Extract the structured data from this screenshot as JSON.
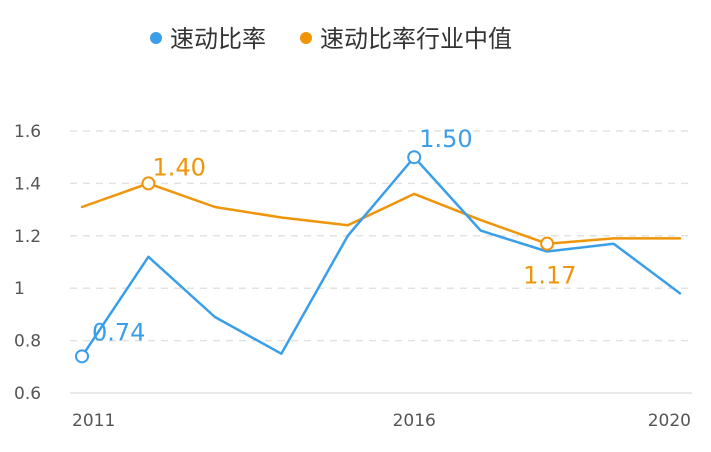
{
  "chart_data": {
    "type": "line",
    "x": [
      "2011",
      "2012",
      "2013",
      "2014",
      "2015",
      "2016",
      "2017",
      "2018",
      "2019",
      "2020"
    ],
    "x_tick_labels": [
      "2011",
      "2016",
      "2020"
    ],
    "series": [
      {
        "name": "速动比率",
        "color": "#3a9ee8",
        "values": [
          0.74,
          1.12,
          0.89,
          0.75,
          1.2,
          1.5,
          1.22,
          1.14,
          1.17,
          0.98
        ],
        "annotations": [
          {
            "index": 0,
            "label": "0.74"
          },
          {
            "index": 5,
            "label": "1.50"
          }
        ]
      },
      {
        "name": "速动比率行业中值",
        "color": "#f0940a",
        "values": [
          1.31,
          1.4,
          1.31,
          1.27,
          1.24,
          1.36,
          1.26,
          1.17,
          1.19,
          1.19
        ],
        "annotations": [
          {
            "index": 1,
            "label": "1.40"
          },
          {
            "index": 7,
            "label": "1.17"
          }
        ]
      }
    ],
    "y_ticks": [
      "0.6",
      "0.8",
      "1",
      "1.2",
      "1.4",
      "1.6"
    ],
    "ylim": [
      0.6,
      1.6
    ],
    "grid": "horizontal-dashed",
    "legend": "top-center"
  }
}
